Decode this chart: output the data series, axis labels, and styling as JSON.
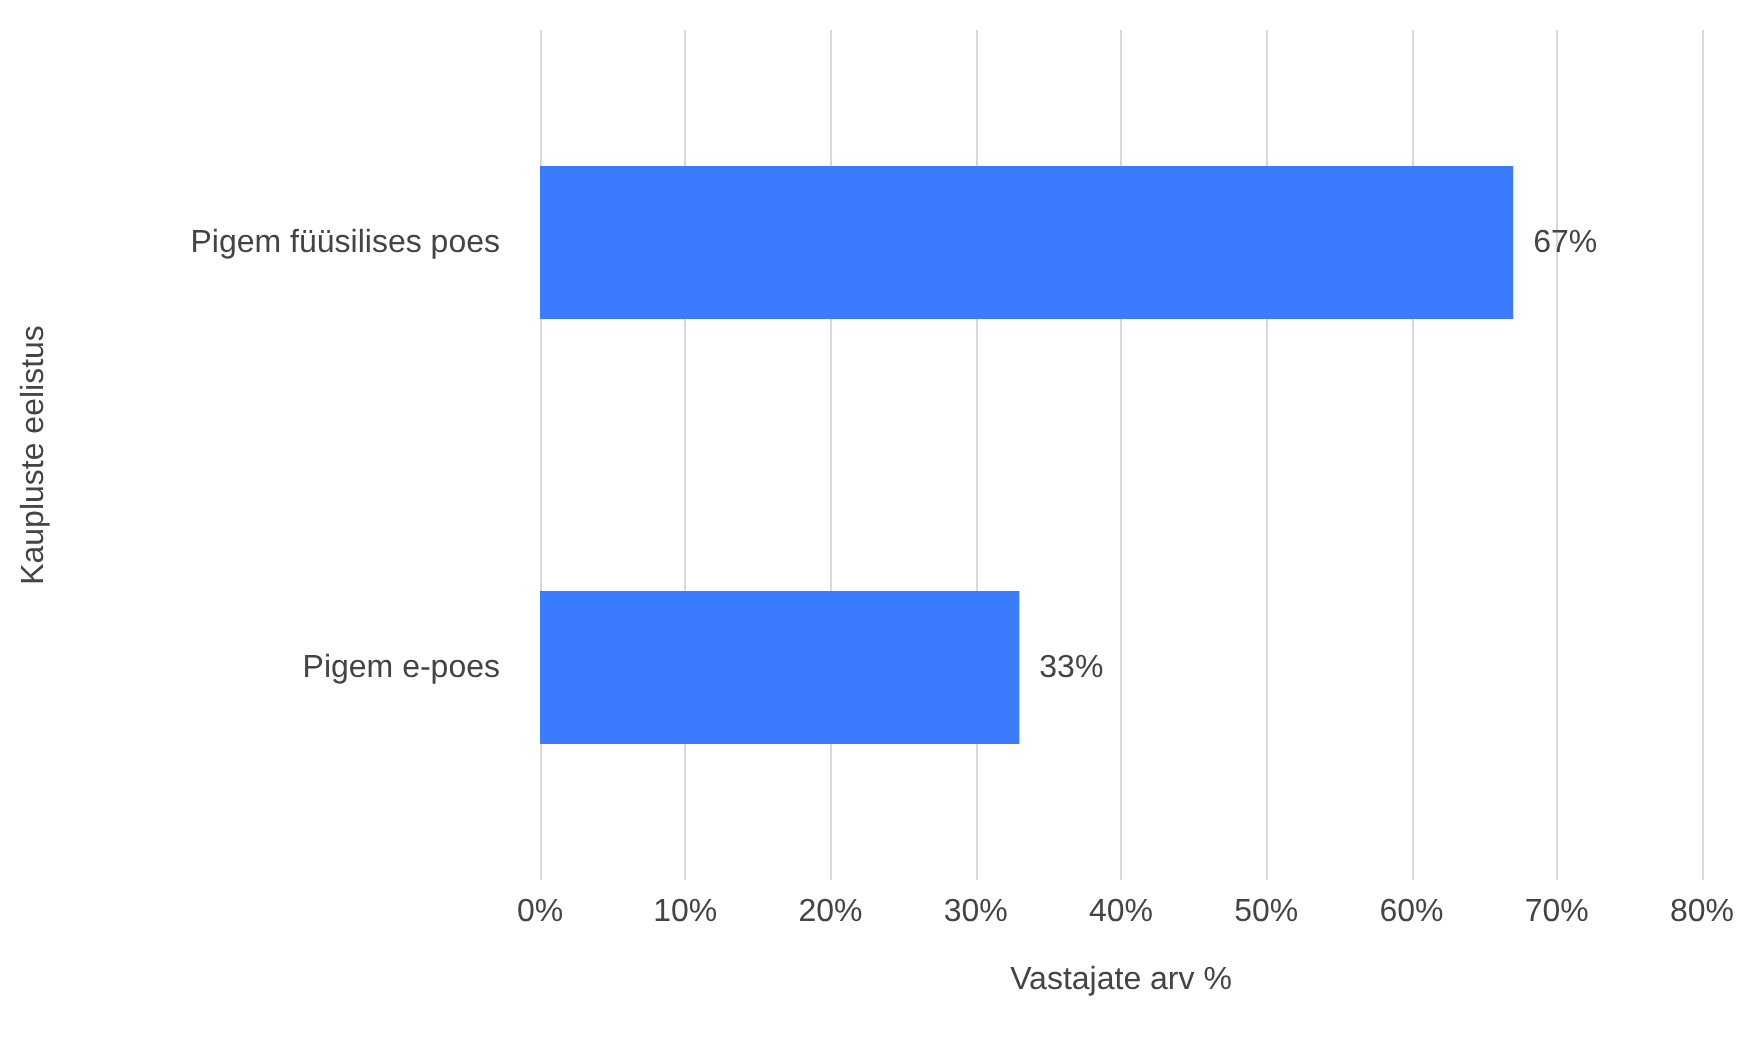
{
  "chart_data": {
    "type": "bar",
    "orientation": "horizontal",
    "categories": [
      "Pigem füüsilises poes",
      "Pigem e-poes"
    ],
    "values": [
      67,
      33
    ],
    "color": "#3b7cff",
    "value_labels": [
      "67%",
      "33%"
    ],
    "xlabel": "Vastajate arv %",
    "ylabel": "Kaupluste eelistus",
    "xlim": [
      0,
      80
    ],
    "xticks": [
      {
        "value": 0,
        "label": "0%"
      },
      {
        "value": 10,
        "label": "10%"
      },
      {
        "value": 20,
        "label": "20%"
      },
      {
        "value": 30,
        "label": "30%"
      },
      {
        "value": 40,
        "label": "40%"
      },
      {
        "value": 50,
        "label": "50%"
      },
      {
        "value": 60,
        "label": "60%"
      },
      {
        "value": 70,
        "label": "70%"
      },
      {
        "value": 80,
        "label": "80%"
      }
    ],
    "grid": "x"
  }
}
